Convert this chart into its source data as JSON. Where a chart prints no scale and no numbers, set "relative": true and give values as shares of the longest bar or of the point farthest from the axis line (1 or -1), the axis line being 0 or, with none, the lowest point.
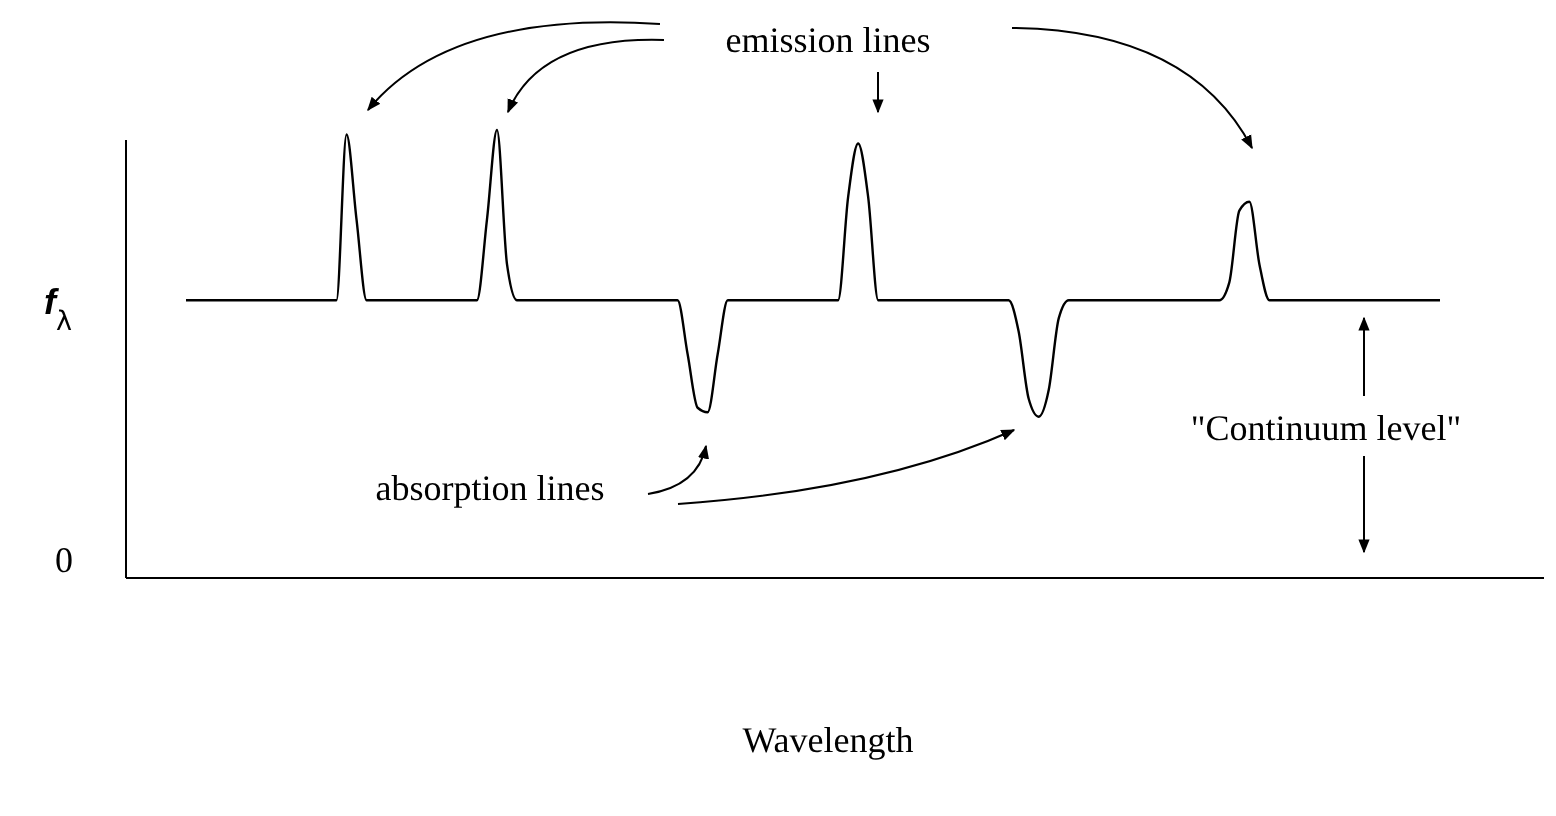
{
  "chart_data": {
    "type": "line",
    "relative": true,
    "xlabel": "Wavelength",
    "ylabel": "f$_{λ}$",
    "color": "#000000",
    "line_style": "solid",
    "categories": [
      null,
      null,
      null,
      null,
      null,
      null,
      null,
      null,
      null,
      null,
      null,
      null,
      null,
      null,
      null,
      null,
      null,
      null,
      null,
      null,
      null,
      null,
      null,
      null,
      null,
      null,
      null,
      null,
      null,
      null,
      null,
      null,
      null,
      null,
      null,
      null,
      null,
      null,
      null,
      null,
      null,
      null,
      null,
      null,
      null,
      null,
      null,
      null,
      null,
      null,
      null,
      null,
      null,
      null,
      null,
      null,
      null,
      null,
      null,
      null,
      null,
      null,
      null,
      null,
      null,
      null,
      null,
      null,
      null,
      null,
      null,
      null,
      null,
      null,
      null,
      null,
      null,
      null,
      null,
      null,
      null,
      null,
      null,
      null,
      null,
      null,
      null,
      null,
      null,
      null,
      null,
      null,
      null,
      null,
      null,
      null,
      null,
      null,
      null,
      null,
      null,
      null,
      null,
      null,
      null,
      null,
      null,
      null,
      null,
      null,
      null,
      null,
      null,
      null,
      null,
      null,
      null,
      null,
      null,
      null,
      null,
      null,
      null,
      null,
      null,
      null
    ],
    "values": [
      0.62,
      0.62,
      0.62,
      0.62,
      0.62,
      0.62,
      0.62,
      0.62,
      0.62,
      0.62,
      0.62,
      0.62,
      0.62,
      0.62,
      0.62,
      0.62,
      0.99,
      0.8,
      0.62,
      0.62,
      0.62,
      0.62,
      0.62,
      0.62,
      0.62,
      0.62,
      0.62,
      0.62,
      0.62,
      0.62,
      0.8,
      1,
      0.7,
      0.62,
      0.62,
      0.62,
      0.62,
      0.62,
      0.62,
      0.62,
      0.62,
      0.62,
      0.62,
      0.62,
      0.62,
      0.62,
      0.62,
      0.62,
      0.62,
      0.62,
      0.5,
      0.38,
      0.37,
      0.5,
      0.62,
      0.62,
      0.62,
      0.62,
      0.62,
      0.62,
      0.62,
      0.62,
      0.62,
      0.62,
      0.62,
      0.62,
      0.85,
      0.97,
      0.85,
      0.62,
      0.62,
      0.62,
      0.62,
      0.62,
      0.62,
      0.62,
      0.62,
      0.62,
      0.62,
      0.62,
      0.62,
      0.62,
      0.62,
      0.55,
      0.4,
      0.36,
      0.42,
      0.58,
      0.62,
      0.62,
      0.62,
      0.62,
      0.62,
      0.62,
      0.62,
      0.62,
      0.62,
      0.62,
      0.62,
      0.62,
      0.62,
      0.62,
      0.62,
      0.62,
      0.66,
      0.82,
      0.84,
      0.7,
      0.62,
      0.62,
      0.62,
      0.62,
      0.62,
      0.62,
      0.62,
      0.62,
      0.62,
      0.62,
      0.62,
      0.62,
      0.62,
      0.62,
      0.62,
      0.62,
      0.62,
      0.62
    ],
    "annotations": [
      "emission lines",
      "absorption lines",
      "\"Continuum level\"",
      "0"
    ]
  }
}
